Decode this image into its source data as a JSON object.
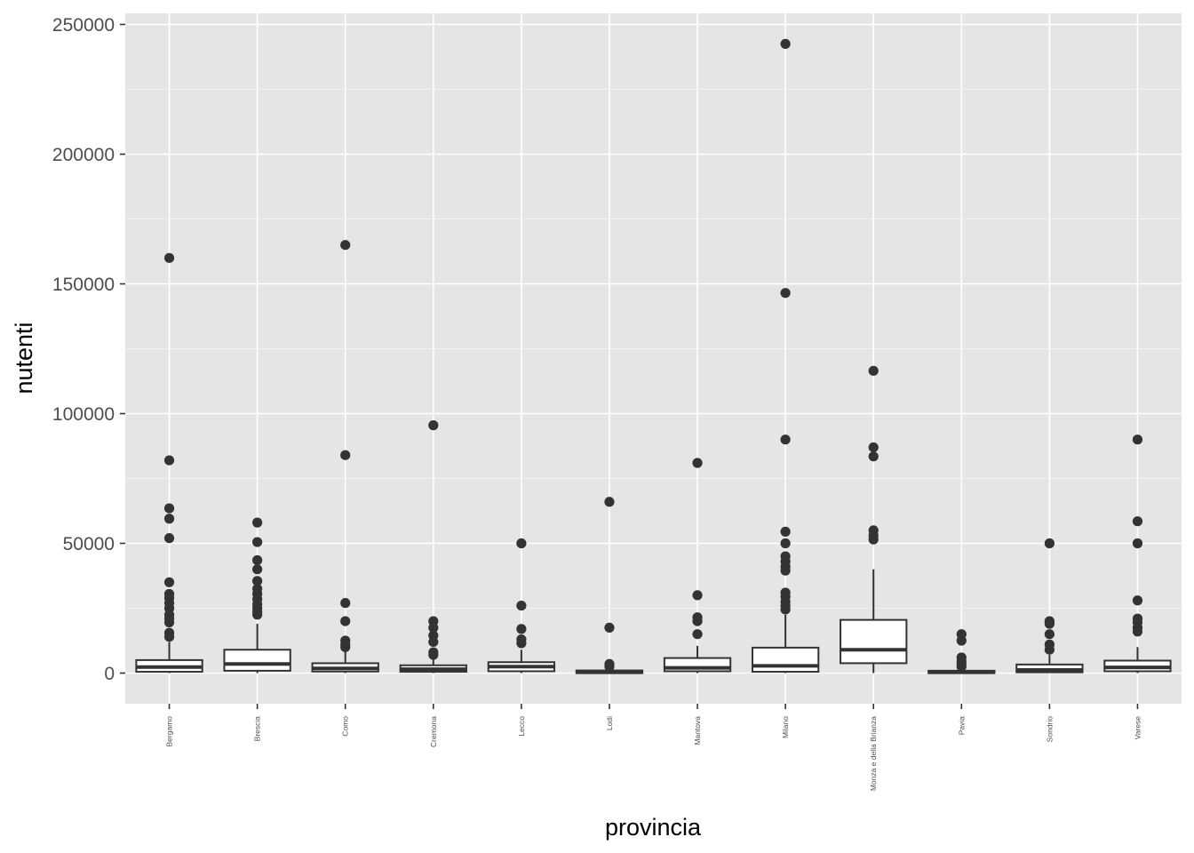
{
  "chart_data": {
    "type": "boxplot",
    "title": "",
    "xlabel": "provincia",
    "ylabel": "nutenti",
    "ylim": [
      -12000,
      250000
    ],
    "yticks": [
      0,
      50000,
      100000,
      150000,
      200000,
      250000
    ],
    "ytick_labels": [
      "0",
      "50000",
      "100000",
      "150000",
      "200000",
      "250000"
    ],
    "grid": true,
    "legend": "none",
    "box_fill": "#ffffff",
    "line_color": "#333333",
    "panel_color": "#e5e5e5",
    "categories": [
      "Bergamo",
      "Brescia",
      "Como",
      "Cremona",
      "Lecco",
      "Lodi",
      "Mantova",
      "Milano",
      "Monza e della Brianza",
      "Pavia",
      "Sondrio",
      "Varese"
    ],
    "boxes": [
      {
        "name": "Bergamo",
        "whisker_low": 0,
        "q1": 500,
        "median": 2300,
        "q3": 5000,
        "whisker_high": 12000,
        "outliers": [
          14000,
          15500,
          19500,
          21000,
          22500,
          25000,
          27000,
          29000,
          30500,
          35000,
          52000,
          59500,
          63500,
          82000,
          160000
        ]
      },
      {
        "name": "Brescia",
        "whisker_low": 0,
        "q1": 900,
        "median": 3500,
        "q3": 9000,
        "whisker_high": 19000,
        "outliers": [
          22500,
          23500,
          25000,
          26500,
          28500,
          30500,
          32500,
          35500,
          40000,
          43500,
          50500,
          58000
        ]
      },
      {
        "name": "Como",
        "whisker_low": 0,
        "q1": 600,
        "median": 1800,
        "q3": 3800,
        "whisker_high": 8500,
        "outliers": [
          10000,
          11000,
          12500,
          20000,
          27000,
          84000,
          165000
        ]
      },
      {
        "name": "Cremona",
        "whisker_low": 0,
        "q1": 500,
        "median": 1500,
        "q3": 3000,
        "whisker_high": 6500,
        "outliers": [
          7000,
          8000,
          12000,
          14500,
          17500,
          20000,
          95500
        ]
      },
      {
        "name": "Lecco",
        "whisker_low": 0,
        "q1": 700,
        "median": 2500,
        "q3": 4200,
        "whisker_high": 9000,
        "outliers": [
          11500,
          13000,
          17000,
          26000,
          50000
        ]
      },
      {
        "name": "Lodi",
        "whisker_low": 0,
        "q1": 0,
        "median": 300,
        "q3": 1000,
        "whisker_high": 1800,
        "outliers": [
          2500,
          3500,
          17500,
          66000
        ]
      },
      {
        "name": "Mantova",
        "whisker_low": 0,
        "q1": 700,
        "median": 2000,
        "q3": 5800,
        "whisker_high": 10500,
        "outliers": [
          15000,
          20000,
          21500,
          30000,
          81000
        ]
      },
      {
        "name": "Milano",
        "whisker_low": 0,
        "q1": 500,
        "median": 2800,
        "q3": 9800,
        "whisker_high": 22500,
        "outliers": [
          24500,
          26000,
          27500,
          29500,
          31000,
          39500,
          41000,
          43000,
          45000,
          50000,
          54500,
          90000,
          146500,
          242500
        ]
      },
      {
        "name": "Monza e della Brianza",
        "whisker_low": 0,
        "q1": 3800,
        "median": 9000,
        "q3": 20500,
        "whisker_high": 40000,
        "outliers": [
          51500,
          53000,
          55000,
          83500,
          87000,
          116500
        ]
      },
      {
        "name": "Pavia",
        "whisker_low": 0,
        "q1": 0,
        "median": 300,
        "q3": 900,
        "whisker_high": 1800,
        "outliers": [
          2500,
          3500,
          4500,
          6000,
          12500,
          15000
        ]
      },
      {
        "name": "Sondrio",
        "whisker_low": 0,
        "q1": 300,
        "median": 1200,
        "q3": 3300,
        "whisker_high": 7000,
        "outliers": [
          9000,
          11000,
          15000,
          19000,
          20000,
          50000
        ]
      },
      {
        "name": "Varese",
        "whisker_low": 0,
        "q1": 700,
        "median": 2200,
        "q3": 4800,
        "whisker_high": 10000,
        "outliers": [
          16000,
          17500,
          19500,
          21000,
          28000,
          50000,
          58500,
          90000
        ]
      }
    ]
  }
}
